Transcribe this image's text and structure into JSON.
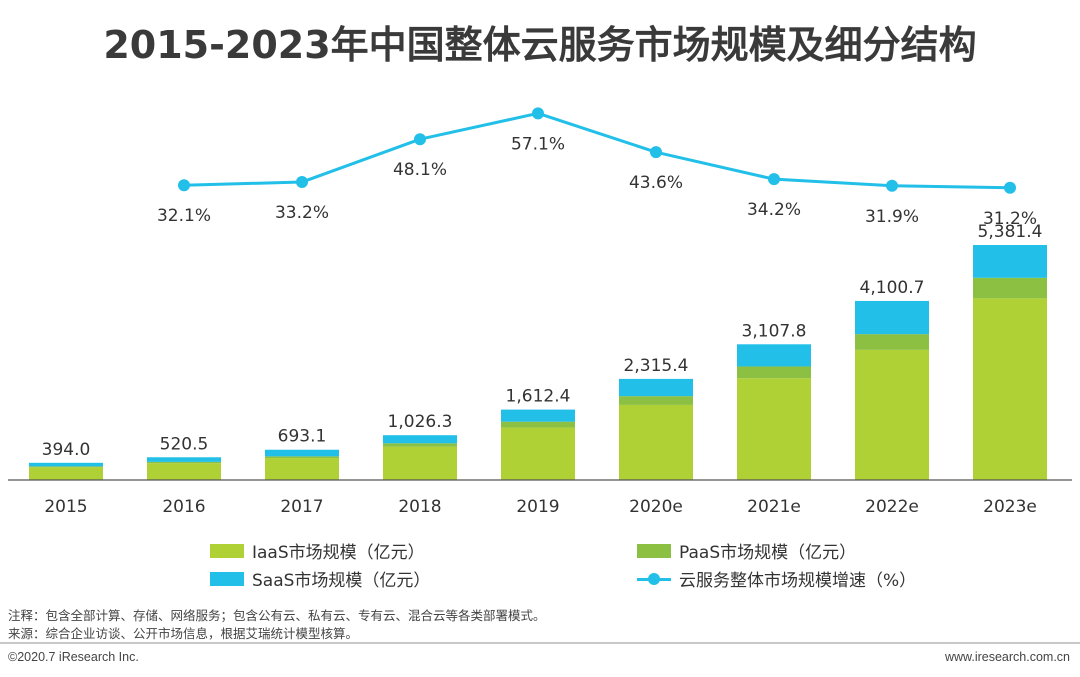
{
  "title": "2015-2023年中国整体云服务市场规模及细分结构",
  "colors": {
    "iaas": "#b0d135",
    "paas": "#8cc043",
    "saas": "#22bfe8",
    "growth": "#22bfe8",
    "axis": "#555555"
  },
  "chart_data": {
    "type": "bar",
    "stacked": true,
    "categories": [
      "2015",
      "2016",
      "2017",
      "2018",
      "2019",
      "2020e",
      "2021e",
      "2022e",
      "2023e"
    ],
    "totals": [
      394.0,
      520.5,
      693.1,
      1026.3,
      1612.4,
      2315.4,
      3107.8,
      4100.7,
      5381.4
    ],
    "total_labels": [
      "394.0",
      "520.5",
      "693.1",
      "1,026.3",
      "1,612.4",
      "2,315.4",
      "3,107.8",
      "4,100.7",
      "5,381.4"
    ],
    "series": [
      {
        "name": "IaaS市场规模（亿元）",
        "values": [
          292,
          385,
          502,
          760,
          1200,
          1720,
          2330,
          2980,
          4160
        ]
      },
      {
        "name": "PaaS市场规模（亿元）",
        "values": [
          20,
          30,
          40,
          80,
          135,
          200,
          270,
          360,
          470
        ]
      },
      {
        "name": "SaaS市场规模（亿元）",
        "values": [
          82,
          105.5,
          151.1,
          186.3,
          277.4,
          395.4,
          507.8,
          760.7,
          751.4
        ]
      }
    ],
    "growth": {
      "name": "云服务整体市场规模增速（%）",
      "values": [
        32.1,
        33.2,
        48.1,
        57.1,
        43.6,
        34.2,
        31.9,
        31.2
      ],
      "labels": [
        "32.1%",
        "33.2%",
        "48.1%",
        "57.1%",
        "43.6%",
        "34.2%",
        "31.9%",
        "31.2%"
      ]
    },
    "legend_position": "bottom",
    "grid": false
  },
  "legend": {
    "iaas": "IaaS市场规模（亿元）",
    "paas": "PaaS市场规模（亿元）",
    "saas": "SaaS市场规模（亿元）",
    "growth": "云服务整体市场规模增速（%）"
  },
  "notes": {
    "note": "注释：包含全部计算、存储、网络服务；包含公有云、私有云、专有云、混合云等各类部署模式。",
    "source": "来源：综合企业访谈、公开市场信息，根据艾瑞统计模型核算。"
  },
  "footer": {
    "left": "©2020.7 iResearch Inc.",
    "right": "www.iresearch.com.cn"
  }
}
